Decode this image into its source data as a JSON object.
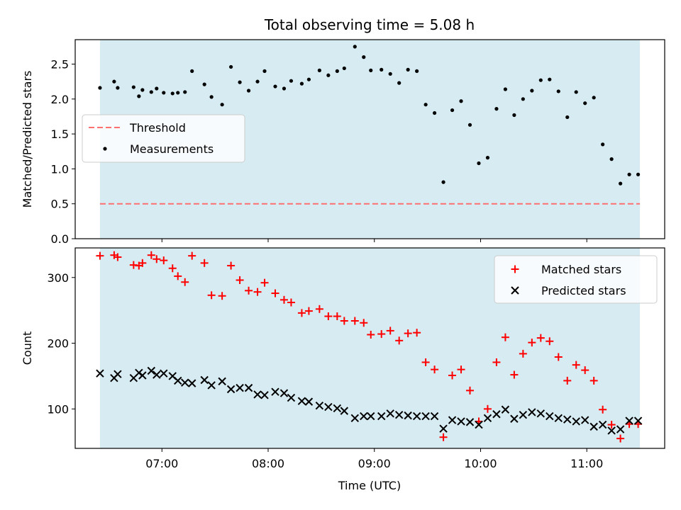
{
  "figure": {
    "title": "Total observing time = 5.08 h",
    "xlabel": "Time (UTC)"
  },
  "chart_data": [
    {
      "type": "scatter",
      "panel": "top",
      "ylabel": "Matched/Predicted stars",
      "xlim": [
        "06:11",
        "11:44"
      ],
      "ylim": [
        0,
        2.85
      ],
      "yticks": [
        "0.0",
        "0.5",
        "1.0",
        "1.5",
        "2.0",
        "2.5"
      ],
      "shaded_span": [
        "06:25",
        "11:30"
      ],
      "threshold": {
        "name": "Threshold",
        "y": 0.5,
        "color": "#ff7070"
      },
      "legend": {
        "position": "center-left",
        "entries": [
          "Threshold",
          "Measurements"
        ]
      },
      "series": [
        {
          "name": "Measurements",
          "color": "#000000",
          "x": [
            "06:25",
            "06:33",
            "06:35",
            "06:44",
            "06:47",
            "06:49",
            "06:54",
            "06:57",
            "07:01",
            "07:06",
            "07:09",
            "07:13",
            "07:17",
            "07:24",
            "07:28",
            "07:34",
            "07:39",
            "07:44",
            "07:49",
            "07:54",
            "07:58",
            "08:04",
            "08:09",
            "08:13",
            "08:19",
            "08:23",
            "08:29",
            "08:34",
            "08:39",
            "08:43",
            "08:49",
            "08:54",
            "08:58",
            "09:04",
            "09:09",
            "09:14",
            "09:19",
            "09:24",
            "09:29",
            "09:34",
            "09:39",
            "09:44",
            "09:49",
            "09:54",
            "09:59",
            "10:04",
            "10:09",
            "10:14",
            "10:19",
            "10:24",
            "10:29",
            "10:34",
            "10:39",
            "10:44",
            "10:49",
            "10:54",
            "10:59",
            "11:04",
            "11:09",
            "11:14",
            "11:19",
            "11:24",
            "11:29"
          ],
          "y": [
            2.16,
            2.25,
            2.16,
            2.17,
            2.04,
            2.13,
            2.1,
            2.15,
            2.09,
            2.08,
            2.09,
            2.1,
            2.4,
            2.21,
            2.03,
            1.92,
            2.46,
            2.24,
            2.12,
            2.25,
            2.4,
            2.18,
            2.15,
            2.26,
            2.22,
            2.28,
            2.41,
            2.34,
            2.4,
            2.44,
            2.75,
            2.6,
            2.41,
            2.42,
            2.36,
            2.23,
            2.42,
            2.4,
            1.92,
            1.8,
            0.81,
            1.84,
            1.97,
            1.63,
            1.08,
            1.16,
            1.86,
            2.14,
            1.77,
            2.0,
            2.12,
            2.27,
            2.28,
            2.11,
            1.74,
            2.1,
            1.94,
            2.02,
            1.35,
            1.14,
            0.79,
            0.92,
            0.92
          ]
        }
      ]
    },
    {
      "type": "scatter",
      "panel": "bottom",
      "ylabel": "Count",
      "xlim": [
        "06:11",
        "11:44"
      ],
      "ylim": [
        40,
        345
      ],
      "yticks": [
        "100",
        "200",
        "300"
      ],
      "xticks": [
        "07:00",
        "08:00",
        "09:00",
        "10:00",
        "11:00"
      ],
      "shaded_span": [
        "06:25",
        "11:30"
      ],
      "legend": {
        "position": "top-right",
        "entries": [
          "Matched stars",
          "Predicted stars"
        ]
      },
      "series": [
        {
          "name": "Matched stars",
          "marker": "+",
          "color": "#ff0000",
          "x": [
            "06:25",
            "06:33",
            "06:35",
            "06:44",
            "06:47",
            "06:49",
            "06:54",
            "06:57",
            "07:01",
            "07:06",
            "07:09",
            "07:13",
            "07:17",
            "07:24",
            "07:28",
            "07:34",
            "07:39",
            "07:44",
            "07:49",
            "07:54",
            "07:58",
            "08:04",
            "08:09",
            "08:13",
            "08:19",
            "08:23",
            "08:29",
            "08:34",
            "08:39",
            "08:43",
            "08:49",
            "08:54",
            "08:58",
            "09:04",
            "09:09",
            "09:14",
            "09:19",
            "09:24",
            "09:29",
            "09:34",
            "09:39",
            "09:44",
            "09:49",
            "09:54",
            "09:59",
            "10:04",
            "10:09",
            "10:14",
            "10:19",
            "10:24",
            "10:29",
            "10:34",
            "10:39",
            "10:44",
            "10:49",
            "10:54",
            "10:59",
            "11:04",
            "11:09",
            "11:14",
            "11:19",
            "11:24",
            "11:29"
          ],
          "y": [
            333,
            334,
            331,
            319,
            318,
            322,
            334,
            328,
            326,
            314,
            302,
            293,
            333,
            322,
            273,
            272,
            318,
            296,
            280,
            278,
            292,
            276,
            266,
            262,
            246,
            249,
            252,
            241,
            241,
            234,
            234,
            231,
            213,
            214,
            219,
            204,
            215,
            216,
            171,
            160,
            57,
            151,
            160,
            128,
            81,
            100,
            171,
            209,
            152,
            184,
            201,
            208,
            203,
            179,
            143,
            167,
            159,
            143,
            99,
            76,
            55,
            77,
            77
          ]
        },
        {
          "name": "Predicted stars",
          "marker": "x",
          "color": "#000000",
          "x": [
            "06:25",
            "06:33",
            "06:35",
            "06:44",
            "06:47",
            "06:49",
            "06:54",
            "06:57",
            "07:01",
            "07:06",
            "07:09",
            "07:13",
            "07:17",
            "07:24",
            "07:28",
            "07:34",
            "07:39",
            "07:44",
            "07:49",
            "07:54",
            "07:58",
            "08:04",
            "08:09",
            "08:13",
            "08:19",
            "08:23",
            "08:29",
            "08:34",
            "08:39",
            "08:43",
            "08:49",
            "08:54",
            "08:58",
            "09:04",
            "09:09",
            "09:14",
            "09:19",
            "09:24",
            "09:29",
            "09:34",
            "09:39",
            "09:44",
            "09:49",
            "09:54",
            "09:59",
            "10:04",
            "10:09",
            "10:14",
            "10:19",
            "10:24",
            "10:29",
            "10:34",
            "10:39",
            "10:44",
            "10:49",
            "10:54",
            "10:59",
            "11:04",
            "11:09",
            "11:14",
            "11:19",
            "11:24",
            "11:29"
          ],
          "y": [
            154,
            147,
            153,
            147,
            155,
            151,
            158,
            152,
            154,
            150,
            143,
            140,
            139,
            144,
            136,
            142,
            130,
            132,
            132,
            122,
            121,
            126,
            124,
            117,
            112,
            111,
            105,
            103,
            101,
            97,
            86,
            89,
            89,
            89,
            93,
            91,
            90,
            89,
            89,
            89,
            70,
            83,
            81,
            80,
            76,
            86,
            92,
            99,
            85,
            91,
            95,
            93,
            89,
            86,
            84,
            81,
            83,
            73,
            76,
            67,
            69,
            82,
            82
          ]
        }
      ]
    }
  ]
}
